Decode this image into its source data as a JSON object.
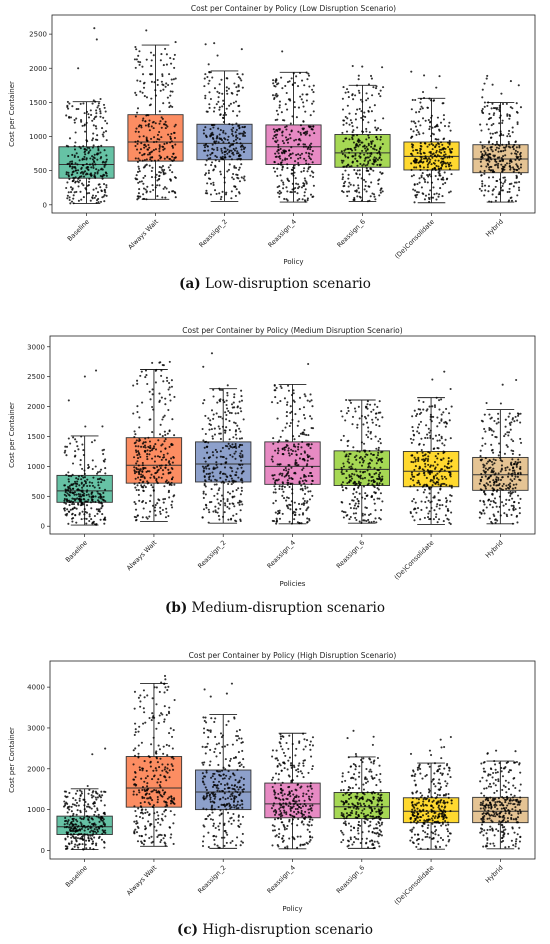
{
  "chart_data": [
    {
      "type": "box",
      "title": "Cost per Container by Policy (Low Disruption Scenario)",
      "xlabel": "Policy",
      "ylabel": "Cost per Container",
      "ylim": [
        -120,
        2780
      ],
      "yticks": [
        0,
        500,
        1000,
        1500,
        2000,
        2500
      ],
      "caption_label": "(a)",
      "caption_text": " Low-disruption scenario",
      "categories": [
        "Baseline",
        "Always Wait",
        "Reassign_2",
        "Reassign_4",
        "Reassign_6",
        "(De)Consolidate",
        "Hybrid"
      ],
      "colors": [
        "#66c2a5",
        "#fc8d62",
        "#8da0cb",
        "#e78ac3",
        "#a6d854",
        "#ffd92f",
        "#e5c494"
      ],
      "boxes": [
        {
          "whislo": 20,
          "q1": 390,
          "med": 590,
          "q3": 850,
          "whishi": 1510,
          "max": 2620
        },
        {
          "whislo": 80,
          "q1": 640,
          "med": 920,
          "q3": 1320,
          "whishi": 2340,
          "max": 2630
        },
        {
          "whislo": 50,
          "q1": 660,
          "med": 900,
          "q3": 1180,
          "whishi": 1960,
          "max": 2760
        },
        {
          "whislo": 40,
          "q1": 590,
          "med": 850,
          "q3": 1170,
          "whishi": 1940,
          "max": 2400
        },
        {
          "whislo": 50,
          "q1": 550,
          "med": 760,
          "q3": 1030,
          "whishi": 1750,
          "max": 2060
        },
        {
          "whislo": 30,
          "q1": 510,
          "med": 710,
          "q3": 920,
          "whishi": 1560,
          "max": 1990
        },
        {
          "whislo": 40,
          "q1": 470,
          "med": 670,
          "q3": 880,
          "whishi": 1500,
          "max": 1900
        }
      ]
    },
    {
      "type": "box",
      "title": "Cost per Container by Policy (Medium Disruption Scenario)",
      "xlabel": "Policies",
      "ylabel": "Cost per Container",
      "ylim": [
        -130,
        3180
      ],
      "yticks": [
        0,
        500,
        1000,
        1500,
        2000,
        2500,
        3000
      ],
      "caption_label": "(b)",
      "caption_text": " Medium-disruption scenario",
      "categories": [
        "Baseline",
        "Always Wait",
        "Reassign_2",
        "Reassign_4",
        "Reassign_6",
        "(De)Consolidate",
        "Hybrid"
      ],
      "colors": [
        "#66c2a5",
        "#fc8d62",
        "#8da0cb",
        "#e78ac3",
        "#a6d854",
        "#ffd92f",
        "#e5c494"
      ],
      "boxes": [
        {
          "whislo": 20,
          "q1": 400,
          "med": 590,
          "q3": 850,
          "whishi": 1510,
          "max": 2620
        },
        {
          "whislo": 80,
          "q1": 720,
          "med": 1020,
          "q3": 1480,
          "whishi": 2620,
          "max": 2780
        },
        {
          "whislo": 50,
          "q1": 740,
          "med": 1040,
          "q3": 1410,
          "whishi": 2300,
          "max": 3060
        },
        {
          "whislo": 40,
          "q1": 700,
          "med": 1000,
          "q3": 1410,
          "whishi": 2370,
          "max": 2980
        },
        {
          "whislo": 50,
          "q1": 680,
          "med": 950,
          "q3": 1260,
          "whishi": 2110,
          "max": 2640
        },
        {
          "whislo": 30,
          "q1": 660,
          "med": 920,
          "q3": 1250,
          "whishi": 2150,
          "max": 2600
        },
        {
          "whislo": 40,
          "q1": 600,
          "med": 860,
          "q3": 1150,
          "whishi": 1950,
          "max": 2490
        }
      ]
    },
    {
      "type": "box",
      "title": "Cost per Container by Policy (High Disruption Scenario)",
      "xlabel": "Policy",
      "ylabel": "Cost per Container",
      "ylim": [
        -210,
        4640
      ],
      "yticks": [
        0,
        1000,
        2000,
        3000,
        4000
      ],
      "caption_label": "(c)",
      "caption_text": " High-disruption scenario",
      "categories": [
        "Baseline",
        "Always Wait",
        "Reassign_2",
        "Reassign_4",
        "Reassign_6",
        "(De)Consolidate",
        "Hybrid"
      ],
      "colors": [
        "#66c2a5",
        "#fc8d62",
        "#8da0cb",
        "#e78ac3",
        "#a6d854",
        "#ffd92f",
        "#e5c494"
      ],
      "boxes": [
        {
          "whislo": 20,
          "q1": 390,
          "med": 580,
          "q3": 840,
          "whishi": 1510,
          "max": 2620
        },
        {
          "whislo": 100,
          "q1": 1060,
          "med": 1530,
          "q3": 2300,
          "whishi": 4090,
          "max": 4300
        },
        {
          "whislo": 50,
          "q1": 1000,
          "med": 1430,
          "q3": 1970,
          "whishi": 3330,
          "max": 4420
        },
        {
          "whislo": 40,
          "q1": 800,
          "med": 1140,
          "q3": 1650,
          "whishi": 2870,
          "max": 3300
        },
        {
          "whislo": 50,
          "q1": 780,
          "med": 1070,
          "q3": 1420,
          "whishi": 2290,
          "max": 3230
        },
        {
          "whislo": 30,
          "q1": 680,
          "med": 960,
          "q3": 1290,
          "whishi": 2140,
          "max": 2780
        },
        {
          "whislo": 40,
          "q1": 680,
          "med": 960,
          "q3": 1300,
          "whishi": 2190,
          "max": 2660
        }
      ]
    }
  ]
}
